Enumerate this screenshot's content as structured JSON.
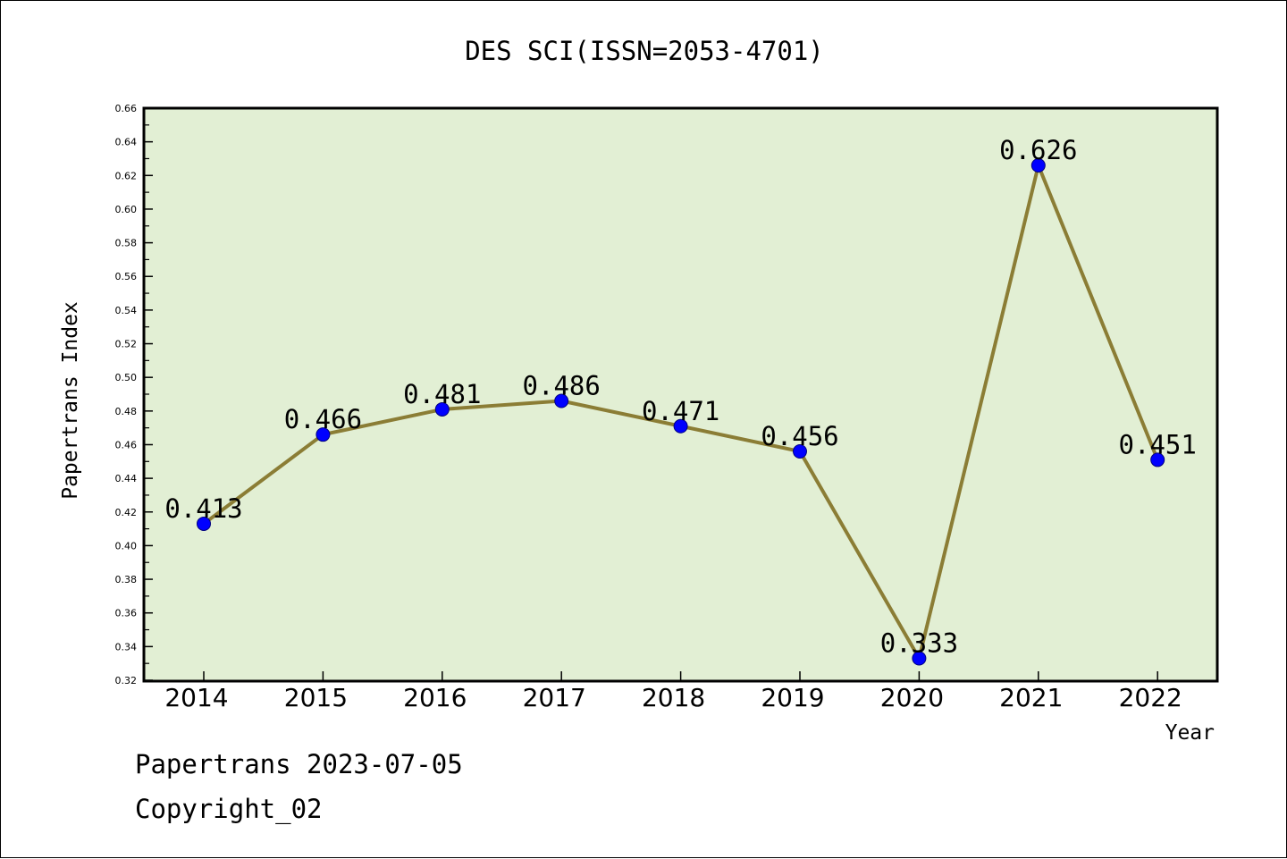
{
  "chart_data": {
    "type": "line",
    "title": "DES SCI(ISSN=2053-4701)",
    "xlabel": "Year",
    "ylabel": "Papertrans Index",
    "categories": [
      "2014",
      "2015",
      "2016",
      "2017",
      "2018",
      "2019",
      "2020",
      "2021",
      "2022"
    ],
    "values": [
      0.413,
      0.466,
      0.481,
      0.486,
      0.471,
      0.456,
      0.333,
      0.626,
      0.451
    ],
    "data_labels": [
      "0.413",
      "0.466",
      "0.481",
      "0.486",
      "0.471",
      "0.456",
      "0.333",
      "0.626",
      "0.451"
    ],
    "ylim": [
      0.32,
      0.66
    ],
    "yticks": [
      "0.32",
      "0.34",
      "0.36",
      "0.38",
      "0.40",
      "0.42",
      "0.44",
      "0.46",
      "0.48",
      "0.50",
      "0.52",
      "0.54",
      "0.56",
      "0.58",
      "0.60",
      "0.62",
      "0.64",
      "0.66"
    ],
    "grid": false,
    "legend": "none",
    "colors": {
      "plot_background": "#e2efd4",
      "line": "#8b7d35",
      "marker": "#0000ff",
      "marker_edge": "#000080"
    }
  },
  "footer": {
    "line1": "Papertrans 2023-07-05",
    "line2": "Copyright_02"
  }
}
